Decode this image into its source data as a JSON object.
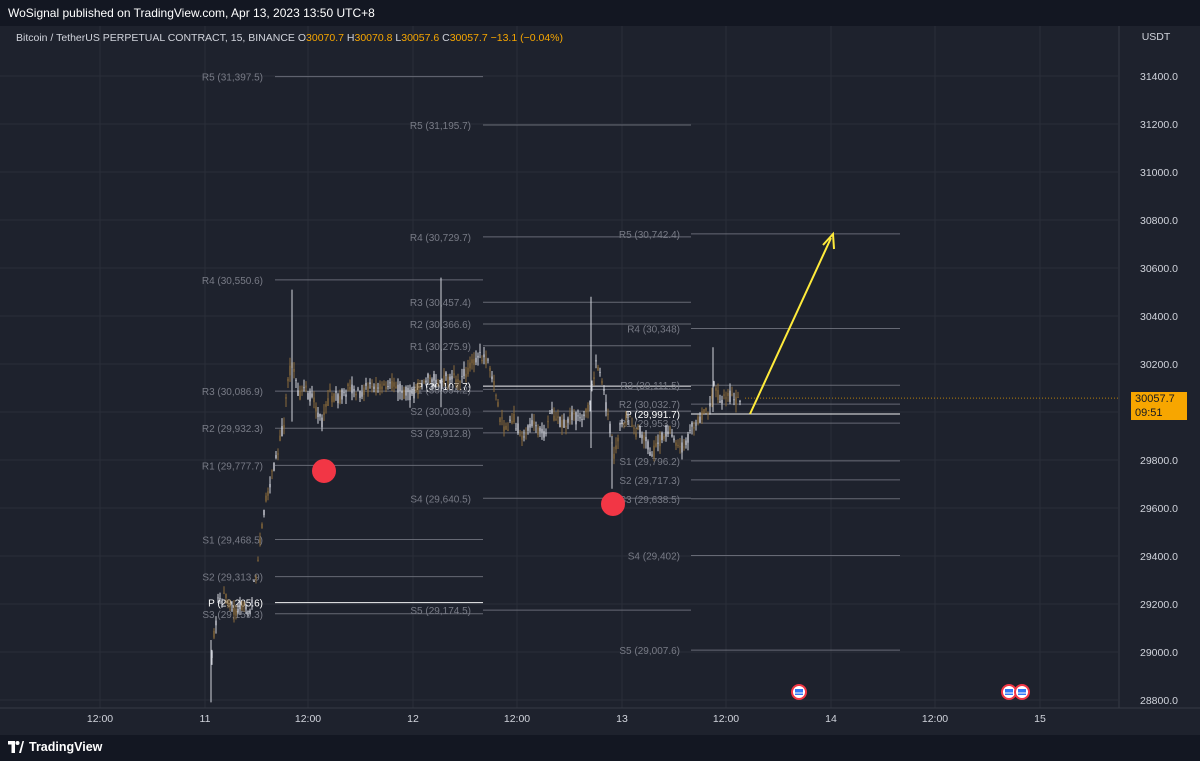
{
  "header": {
    "published": "WoSignal published on TradingView.com, Apr 13, 2023 13:50 UTC+8"
  },
  "legend": {
    "symbol": "Bitcoin / TetherUS PERPETUAL CONTRACT, 15, BINANCE",
    "open_label": "O",
    "open": "30070.7",
    "high_label": "H",
    "high": "30070.8",
    "low_label": "L",
    "low": "30057.6",
    "close_label": "C",
    "close": "30057.7",
    "change": "−13.1 (−0.04%)"
  },
  "axis": {
    "currency": "USDT",
    "price_ticks": [
      "31400.0",
      "31200.0",
      "31000.0",
      "30800.0",
      "30600.0",
      "30400.0",
      "30200.0",
      "30000.0",
      "29800.0",
      "29600.0",
      "29400.0",
      "29200.0",
      "29000.0",
      "28800.0"
    ],
    "time_ticks": [
      "12:00",
      "11",
      "12:00",
      "12",
      "12:00",
      "13",
      "12:00",
      "14",
      "12:00",
      "15"
    ]
  },
  "last_price": {
    "price": "30057.7",
    "countdown": "09:51",
    "color": "#f7a600"
  },
  "pivot_levels": [
    {
      "session": "11",
      "levels": [
        {
          "label": "R5 (31,397.5)",
          "price": 31397.5
        },
        {
          "label": "R4 (30,550.6)",
          "price": 30550.6
        },
        {
          "label": "R3 (30,086.9)",
          "price": 30086.9
        },
        {
          "label": "R2 (29,932.3)",
          "price": 29932.3
        },
        {
          "label": "R1 (29,777.7)",
          "price": 29777.7
        },
        {
          "label": "S1 (29,468.5)",
          "price": 29468.5
        },
        {
          "label": "S2 (29,313.9)",
          "price": 29313.9
        },
        {
          "label": "P (29,205.6)",
          "price": 29205.6,
          "pivot": true
        },
        {
          "label": "S3 (29,159.3)",
          "price": 29159.3
        }
      ]
    },
    {
      "session": "12",
      "levels": [
        {
          "label": "R5 (31,195.7)",
          "price": 31195.7
        },
        {
          "label": "R4 (30,729.7)",
          "price": 30729.7
        },
        {
          "label": "R3 (30,457.4)",
          "price": 30457.4
        },
        {
          "label": "R2 (30,366.6)",
          "price": 30366.6
        },
        {
          "label": "R1 (30,275.9)",
          "price": 30275.9
        },
        {
          "label": "P (30,107.7)",
          "price": 30107.7,
          "pivot": true
        },
        {
          "label": "S1 (30,094.2)",
          "price": 30094.2
        },
        {
          "label": "S2 (30,003.6)",
          "price": 30003.6
        },
        {
          "label": "S3 (29,912.8)",
          "price": 29912.8
        },
        {
          "label": "S4 (29,640.5)",
          "price": 29640.5
        },
        {
          "label": "S5 (29,174.5)",
          "price": 29174.5
        }
      ]
    },
    {
      "session": "13",
      "levels": [
        {
          "label": "R5 (30,742.4)",
          "price": 30742.4
        },
        {
          "label": "R4 (30,348)",
          "price": 30348.0
        },
        {
          "label": "R3 (30,111.5)",
          "price": 30111.5
        },
        {
          "label": "R2 (30,032.7)",
          "price": 30032.7
        },
        {
          "label": "P (29,991.7)",
          "price": 29991.7,
          "pivot": true
        },
        {
          "label": "R1 (29,953.9)",
          "price": 29953.9
        },
        {
          "label": "S1 (29,796.2)",
          "price": 29796.2
        },
        {
          "label": "S2 (29,717.3)",
          "price": 29717.3
        },
        {
          "label": "S3 (29,638.5)",
          "price": 29638.5
        },
        {
          "label": "S4 (29,402)",
          "price": 29402.0
        },
        {
          "label": "S5 (29,007.6)",
          "price": 29007.6
        }
      ]
    }
  ],
  "annotations": {
    "marker_color": "#f23645",
    "arrow_color": "#ffeb3b",
    "event_flag_count": 3
  },
  "footer": {
    "brand": "TradingView"
  },
  "colors": {
    "background": "#1e222d",
    "grid": "#2a2e39",
    "level_line": "#787b86",
    "level_text": "#787b86",
    "pivot_line": "#ffffff",
    "candle_up": "#d1d4dc",
    "candle_down": "#8b6b3a"
  }
}
